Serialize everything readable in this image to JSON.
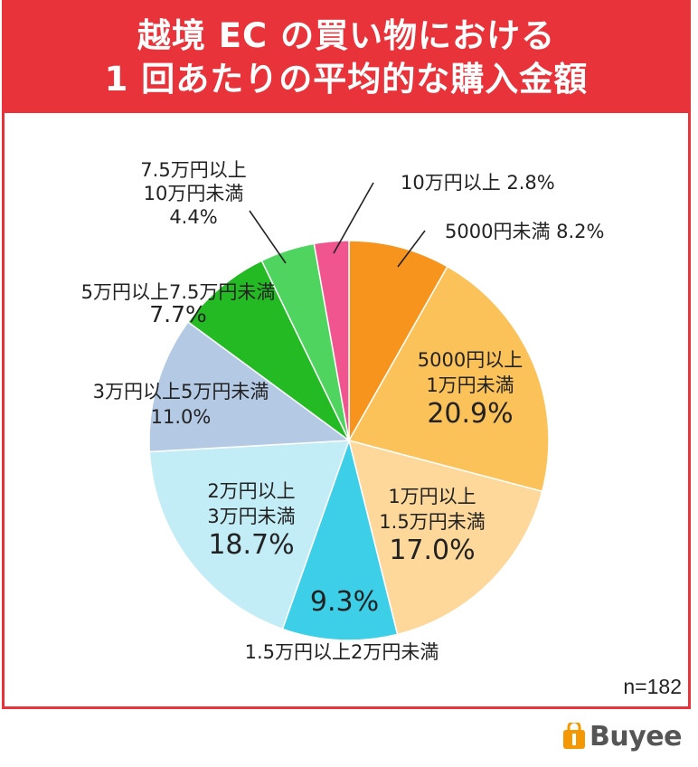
{
  "title": {
    "line1": "越境 EC の買い物における",
    "line2": "1 回あたりの平均的な購入金額",
    "bg_color": "#e8333a"
  },
  "sample_size": "n=182",
  "logo": {
    "text": "Buyee",
    "icon": "shopping-bag-icon",
    "color": "#f39800"
  },
  "chart_data": {
    "type": "pie",
    "title": "越境 EC の買い物における 1 回あたりの平均的な購入金額",
    "start_angle_deg": 0,
    "direction": "clockwise",
    "slices": [
      {
        "label": "5000円未満",
        "value": 8.2,
        "display": "8.2%",
        "color": "#f7941d"
      },
      {
        "label": "5000円以上 1万円未満",
        "value": 20.9,
        "display": "20.9%",
        "color": "#fbc25a"
      },
      {
        "label": "1万円以上 1.5万円未満",
        "value": 17.0,
        "display": "17.0%",
        "color": "#fdd89a"
      },
      {
        "label": "1.5万円以上2万円未満",
        "value": 9.3,
        "display": "9.3%",
        "color": "#3dcfe8"
      },
      {
        "label": "2万円以上 3万円未満",
        "value": 18.7,
        "display": "18.7%",
        "color": "#c2ecf6"
      },
      {
        "label": "3万円以上5万円未満",
        "value": 11.0,
        "display": "11.0%",
        "color": "#b3c9e4"
      },
      {
        "label": "5万円以上7.5万円未満",
        "value": 7.7,
        "display": "7.7%",
        "color": "#24ba24"
      },
      {
        "label": "7.5万円以上 10万円未満",
        "value": 4.4,
        "display": "4.4%",
        "color": "#4fd45f"
      },
      {
        "label": "10万円以上",
        "value": 2.8,
        "display": "2.8%",
        "color": "#f1558f"
      }
    ]
  }
}
